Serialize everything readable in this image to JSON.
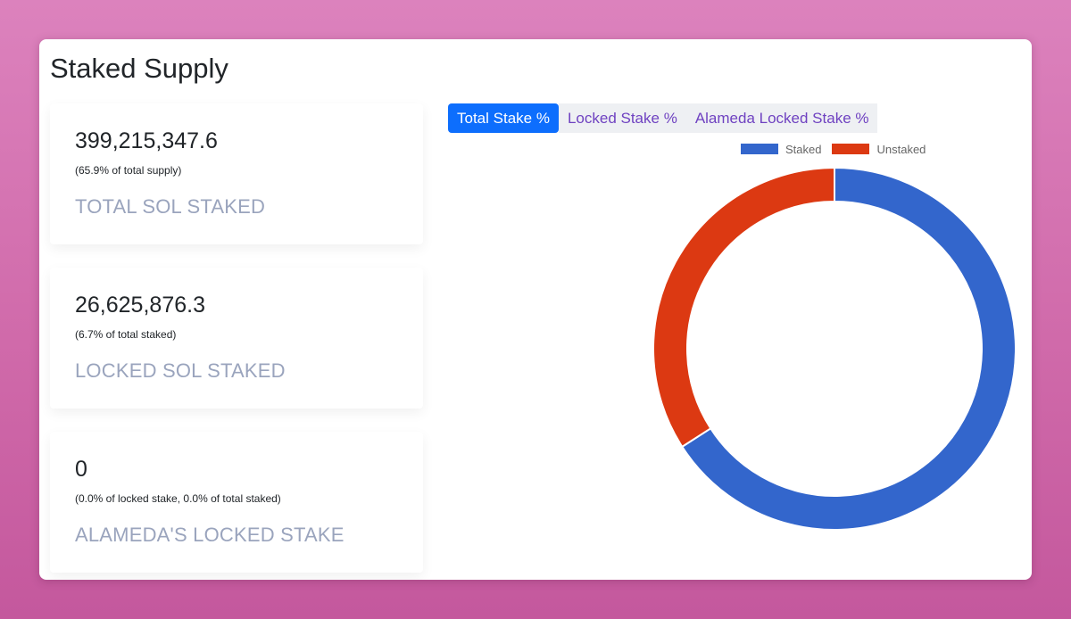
{
  "panel": {
    "title": "Staked Supply"
  },
  "cards": [
    {
      "value": "399,215,347.6",
      "sub": "(65.9% of total supply)",
      "label": "TOTAL SOL STAKED"
    },
    {
      "value": "26,625,876.3",
      "sub": "(6.7% of total staked)",
      "label": "LOCKED SOL STAKED"
    },
    {
      "value": "0",
      "sub": "(0.0% of locked stake, 0.0% of total staked)",
      "label": "ALAMEDA'S LOCKED STAKE"
    }
  ],
  "tabs": [
    {
      "label": "Total Stake %",
      "active": true
    },
    {
      "label": "Locked Stake %",
      "active": false
    },
    {
      "label": "Alameda Locked Stake %",
      "active": false
    }
  ],
  "chart_data": {
    "type": "pie",
    "variant": "doughnut",
    "categories": [
      "Staked",
      "Unstaked"
    ],
    "values": [
      65.9,
      34.1
    ],
    "colors": [
      "#3366cc",
      "#dc3912"
    ],
    "legend_position": "top"
  }
}
